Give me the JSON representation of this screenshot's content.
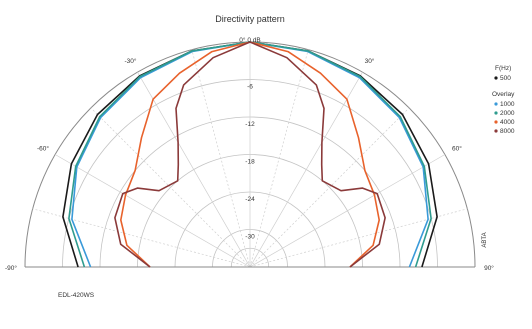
{
  "chart_data": {
    "type": "polar-line",
    "title": "Directivity pattern",
    "top_label": "0° 0 dB",
    "angle_ticks": [
      {
        "label": "-90°",
        "angle": -90
      },
      {
        "label": "-60°",
        "angle": -60
      },
      {
        "label": "-30°",
        "angle": -30
      },
      {
        "label": "30°",
        "angle": 30
      },
      {
        "label": "60°",
        "angle": 60
      },
      {
        "label": "90°",
        "angle": 90
      }
    ],
    "radial_unit": "dB",
    "radial_range": [
      -36,
      0
    ],
    "radial_ticks": [
      "-6",
      "-12",
      "-18",
      "-24",
      "-30"
    ],
    "side_label": "ABTA",
    "legend": {
      "freq_header": "F(Hz)",
      "overlay_header": "Overlay"
    },
    "series": [
      {
        "name": "500",
        "color": "#1a1a1a",
        "points": [
          [
            -90,
            -8.5
          ],
          [
            -75,
            -5
          ],
          [
            -60,
            -3
          ],
          [
            -45,
            -1.5
          ],
          [
            -30,
            -0.7
          ],
          [
            -15,
            -0.2
          ],
          [
            0,
            0
          ],
          [
            15,
            -0.2
          ],
          [
            30,
            -0.7
          ],
          [
            45,
            -1.5
          ],
          [
            60,
            -3
          ],
          [
            75,
            -5
          ],
          [
            90,
            -8.5
          ]
        ]
      },
      {
        "name": "1000",
        "color": "#3a9ad9",
        "points": [
          [
            -90,
            -10.5
          ],
          [
            -75,
            -6.5
          ],
          [
            -60,
            -4
          ],
          [
            -45,
            -2.2
          ],
          [
            -30,
            -1
          ],
          [
            -15,
            -0.3
          ],
          [
            0,
            0
          ],
          [
            15,
            -0.3
          ],
          [
            30,
            -1
          ],
          [
            45,
            -2.2
          ],
          [
            60,
            -4
          ],
          [
            75,
            -6.5
          ],
          [
            90,
            -10.5
          ]
        ]
      },
      {
        "name": "2000",
        "color": "#2f9c8f",
        "points": [
          [
            -90,
            -9.5
          ],
          [
            -75,
            -6
          ],
          [
            -60,
            -3.8
          ],
          [
            -45,
            -2
          ],
          [
            -30,
            -0.8
          ],
          [
            -15,
            -0.2
          ],
          [
            0,
            0
          ],
          [
            15,
            -0.2
          ],
          [
            30,
            -0.8
          ],
          [
            45,
            -2
          ],
          [
            60,
            -3.8
          ],
          [
            75,
            -6
          ],
          [
            90,
            -9.5
          ]
        ]
      },
      {
        "name": "4000",
        "color": "#e8622c",
        "points": [
          [
            -90,
            -20
          ],
          [
            -80,
            -16
          ],
          [
            -70,
            -14
          ],
          [
            -60,
            -13
          ],
          [
            -50,
            -12
          ],
          [
            -40,
            -9
          ],
          [
            -30,
            -5
          ],
          [
            -20,
            -3
          ],
          [
            -10,
            -1
          ],
          [
            0,
            0
          ],
          [
            10,
            -1
          ],
          [
            20,
            -3
          ],
          [
            30,
            -5
          ],
          [
            40,
            -9
          ],
          [
            50,
            -12
          ],
          [
            60,
            -13
          ],
          [
            70,
            -14
          ],
          [
            80,
            -16
          ],
          [
            90,
            -20
          ]
        ]
      },
      {
        "name": "8000",
        "color": "#8b3a3a",
        "points": [
          [
            -90,
            -20
          ],
          [
            -80,
            -15
          ],
          [
            -70,
            -13
          ],
          [
            -60,
            -12.5
          ],
          [
            -55,
            -14
          ],
          [
            -50,
            -17
          ],
          [
            -40,
            -18
          ],
          [
            -35,
            -16
          ],
          [
            -30,
            -13
          ],
          [
            -25,
            -8
          ],
          [
            -20,
            -5
          ],
          [
            -10,
            -2
          ],
          [
            0,
            0
          ],
          [
            10,
            -2
          ],
          [
            20,
            -5
          ],
          [
            25,
            -8
          ],
          [
            30,
            -13
          ],
          [
            35,
            -16
          ],
          [
            40,
            -18
          ],
          [
            50,
            -17
          ],
          [
            55,
            -14
          ],
          [
            60,
            -12.5
          ],
          [
            70,
            -13
          ],
          [
            80,
            -15
          ],
          [
            90,
            -20
          ]
        ]
      }
    ]
  },
  "footer": {
    "model": "EDL-420WS"
  }
}
